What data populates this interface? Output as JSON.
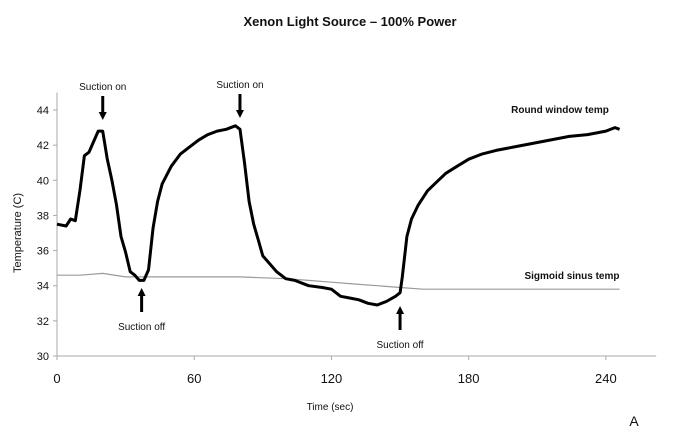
{
  "chart_data": {
    "type": "line",
    "title": "Xenon Light Source – 100% Power",
    "xlabel": "Time (sec)",
    "ylabel": "Temperature  (C)",
    "xlim": [
      0,
      262
    ],
    "ylim": [
      30,
      45
    ],
    "xticks": [
      0,
      60,
      120,
      180,
      240
    ],
    "yticks": [
      30,
      32,
      34,
      36,
      38,
      40,
      42,
      44
    ],
    "grid": false,
    "panel_label": "A",
    "series": [
      {
        "name": "Round window temp",
        "color": "#000000",
        "x": [
          0,
          4,
          6,
          8,
          10,
          12,
          14,
          16,
          18,
          20,
          22,
          24,
          26,
          28,
          30,
          32,
          34,
          36,
          38,
          40,
          42,
          44,
          46,
          50,
          54,
          58,
          62,
          66,
          70,
          74,
          78,
          80,
          82,
          84,
          86,
          88,
          90,
          92,
          96,
          100,
          104,
          110,
          116,
          120,
          124,
          128,
          132,
          136,
          140,
          144,
          148,
          150,
          151,
          153,
          155,
          158,
          162,
          166,
          170,
          175,
          180,
          186,
          192,
          200,
          208,
          216,
          224,
          232,
          240,
          244,
          246
        ],
        "y": [
          37.5,
          37.4,
          37.8,
          37.7,
          39.4,
          41.4,
          41.6,
          42.2,
          42.8,
          42.8,
          41.2,
          40.0,
          38.6,
          36.8,
          35.9,
          34.8,
          34.6,
          34.3,
          34.3,
          34.9,
          37.3,
          38.8,
          39.8,
          40.8,
          41.5,
          41.9,
          42.3,
          42.6,
          42.8,
          42.9,
          43.1,
          42.9,
          41.0,
          38.8,
          37.5,
          36.6,
          35.7,
          35.4,
          34.8,
          34.4,
          34.3,
          34.0,
          33.9,
          33.8,
          33.4,
          33.3,
          33.2,
          33.0,
          32.9,
          33.1,
          33.4,
          33.6,
          34.5,
          36.8,
          37.8,
          38.6,
          39.4,
          39.9,
          40.4,
          40.8,
          41.2,
          41.5,
          41.7,
          41.9,
          42.1,
          42.3,
          42.5,
          42.6,
          42.8,
          43.0,
          42.9
        ]
      },
      {
        "name": "Sigmoid sinus temp",
        "color": "#9a9a9a",
        "x": [
          0,
          10,
          20,
          30,
          40,
          60,
          80,
          100,
          110,
          120,
          130,
          140,
          150,
          160,
          180,
          200,
          220,
          240,
          246
        ],
        "y": [
          34.6,
          34.6,
          34.7,
          34.5,
          34.5,
          34.5,
          34.5,
          34.4,
          34.3,
          34.2,
          34.1,
          34.0,
          33.9,
          33.8,
          33.8,
          33.8,
          33.8,
          33.8,
          33.8
        ]
      }
    ],
    "annotations": [
      {
        "text": "Suction on",
        "x": 20,
        "direction": "down"
      },
      {
        "text": "Suction on",
        "x": 80,
        "direction": "down"
      },
      {
        "text": "Suction off",
        "x": 37,
        "direction": "up"
      },
      {
        "text": "Suction off",
        "x": 150,
        "direction": "up"
      }
    ]
  }
}
